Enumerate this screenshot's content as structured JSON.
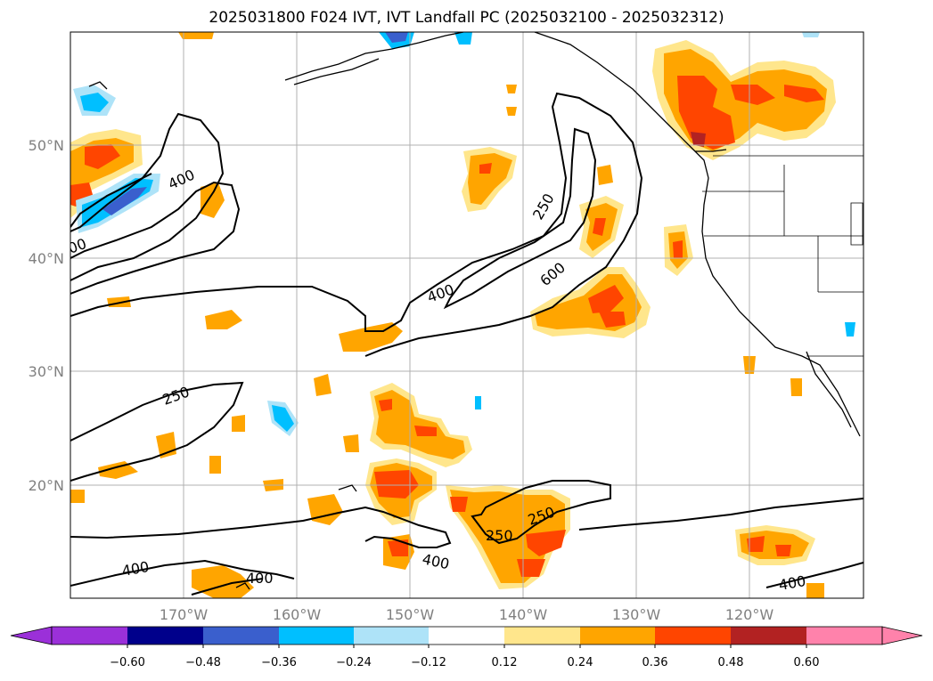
{
  "title": "2025031800 F024 IVT, IVT Landfall PC (2025032100 - 2025032312)",
  "map": {
    "lat_labels": [
      "50°N",
      "40°N",
      "30°N",
      "20°N"
    ],
    "lon_labels": [
      "170°W",
      "160°W",
      "150°W",
      "140°W",
      "130°W",
      "120°W"
    ],
    "contour_labels": [
      "400",
      "00",
      "250",
      "400",
      "600",
      "250",
      "400",
      "250",
      "250",
      "400",
      "400",
      "400"
    ]
  },
  "colorbar": {
    "ticks": [
      "−0.60",
      "−0.48",
      "−0.36",
      "−0.24",
      "−0.12",
      "0.12",
      "0.24",
      "0.36",
      "0.48",
      "0.60"
    ],
    "colors": [
      "#9b30d9",
      "#00008b",
      "#3a5fcd",
      "#00bfff",
      "#aee3f8",
      "#ffffff",
      "#ffe68c",
      "#ffa500",
      "#ff4500",
      "#b22222",
      "#ff82ab"
    ]
  }
}
